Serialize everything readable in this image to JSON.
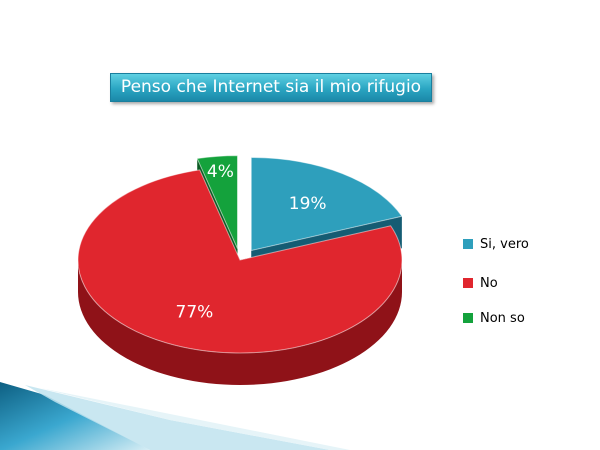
{
  "chart_data": {
    "type": "pie",
    "title": "Penso che Internet sia il mio rifugio",
    "categories": [
      "Si, vero",
      "No",
      "Non so"
    ],
    "values": [
      19,
      77,
      4
    ],
    "data_labels": [
      "19%",
      "77%",
      "4%"
    ],
    "colors": [
      "#2e9fbc",
      "#e0262e",
      "#14a23c"
    ],
    "side_colors": [
      "#155c73",
      "#8f1218",
      "#0a5a22"
    ],
    "exploded": [
      "Si, vero",
      "Non so"
    ],
    "legend_placement": "right",
    "three_d": true
  },
  "legend": {
    "items": [
      {
        "label": "Si, vero",
        "color": "#2e9fbc"
      },
      {
        "label": "No",
        "color": "#e0262e"
      },
      {
        "label": "Non so",
        "color": "#14a23c"
      }
    ]
  }
}
